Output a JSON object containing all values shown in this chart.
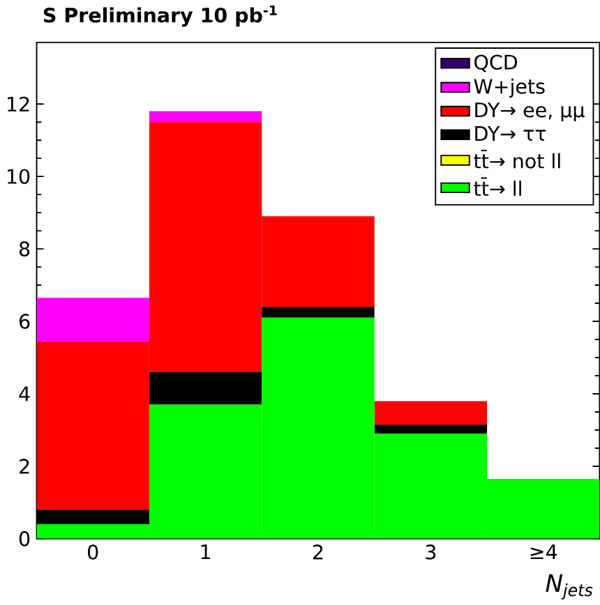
{
  "chart_data": {
    "type": "bar",
    "stacked": true,
    "title": "S Preliminary  10 pb$^{-1}$",
    "xlabel": "N$_{jets}$",
    "categories": [
      "0",
      "1",
      "2",
      "3",
      "≥4"
    ],
    "series": [
      {
        "name": "tt̄→ ll",
        "color": "#00ff00",
        "values": [
          0.4,
          3.7,
          6.1,
          2.9,
          1.65
        ]
      },
      {
        "name": "tt̄→ not ll",
        "color": "#ffff00",
        "values": [
          0,
          0,
          0,
          0,
          0
        ]
      },
      {
        "name": "DY→ ττ",
        "color": "#000000",
        "values": [
          0.4,
          0.9,
          0.3,
          0.25,
          0
        ]
      },
      {
        "name": "DY→ ee, μμ",
        "color": "#ff0000",
        "values": [
          4.65,
          6.9,
          2.5,
          0.65,
          0
        ]
      },
      {
        "name": "W+jets",
        "color": "#ff00ff",
        "values": [
          1.2,
          0.3,
          0,
          0,
          0
        ]
      },
      {
        "name": "QCD",
        "color": "#330066",
        "values": [
          0,
          0,
          0,
          0,
          0
        ]
      }
    ],
    "ylim": [
      0,
      13.7
    ],
    "yticks": [
      0,
      2,
      4,
      6,
      8,
      10,
      12
    ],
    "legend": "top right",
    "grid": false
  }
}
